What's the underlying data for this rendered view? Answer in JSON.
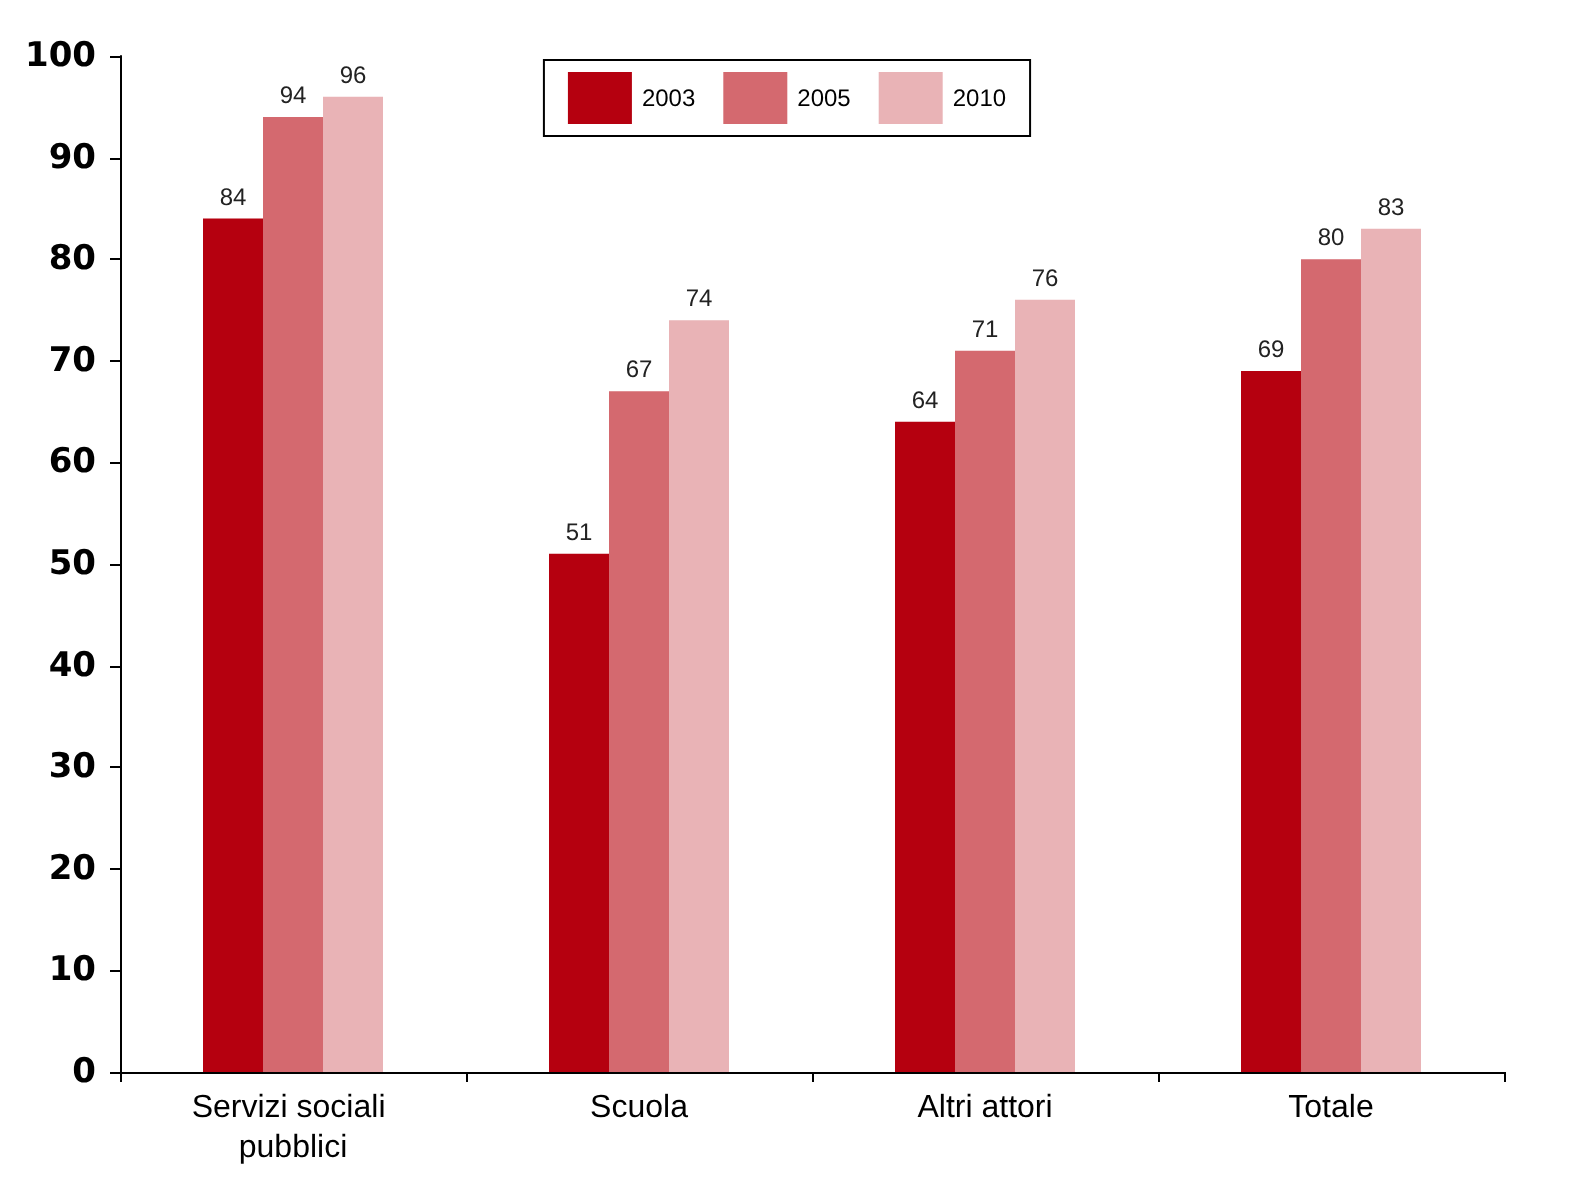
{
  "chart_data": {
    "type": "bar",
    "categories": [
      "Servizi sociali pubblici",
      "Scuola",
      "Altri attori",
      "Totale"
    ],
    "series": [
      {
        "name": "2003",
        "color": "#b5000f",
        "values": [
          84,
          51,
          64,
          69
        ]
      },
      {
        "name": "2005",
        "color": "#d4696f",
        "values": [
          94,
          67,
          71,
          80
        ]
      },
      {
        "name": "2010",
        "color": "#e9b3b6",
        "values": [
          96,
          74,
          76,
          83
        ]
      }
    ],
    "ylim": [
      0,
      100
    ],
    "yticks": [
      0,
      10,
      20,
      30,
      40,
      50,
      60,
      70,
      80,
      90,
      100
    ],
    "grid": false,
    "legend": "top",
    "data_labels": true
  }
}
